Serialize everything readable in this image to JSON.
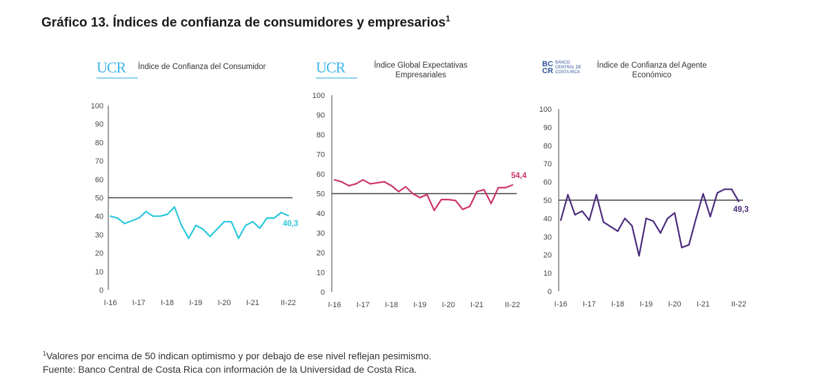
{
  "title": "Gráfico 13. Índices de confianza de consumidores y empresarios",
  "title_sup": "1",
  "logos": {
    "ucr": "UCR",
    "bccr_mark": [
      "BC",
      "CR"
    ],
    "bccr_text": [
      "BANCO",
      "CENTRAL DE",
      "COSTA RICA"
    ]
  },
  "footnotes": {
    "note_sup": "1",
    "note": "Valores por encima de 50 indican optimismo y por debajo de ese nivel reflejan pesimismo.",
    "source": "Fuente: Banco Central de Costa Rica con información de la Universidad de Costa Rica."
  },
  "chart_data": [
    {
      "type": "line",
      "title": "Índice de Confianza del Consumidor",
      "source_logo": "UCR",
      "color": "#29c8dc",
      "xlabel": "",
      "ylabel": "",
      "ylim": [
        0,
        100
      ],
      "yticks": [
        0,
        10,
        20,
        30,
        40,
        50,
        60,
        70,
        80,
        90,
        100
      ],
      "xtick_labels": [
        "I-16",
        "I-17",
        "I-18",
        "I-19",
        "I-20",
        "I-21",
        "II-22"
      ],
      "xtick_positions": [
        0,
        4,
        8,
        12,
        16,
        20,
        25
      ],
      "reference_line": 50,
      "last_value_label": "40,3",
      "values": [
        40,
        39,
        36,
        37.5,
        39,
        42.5,
        40,
        40,
        41,
        45,
        35,
        28,
        35,
        33,
        29,
        33,
        37,
        37,
        28,
        35,
        37,
        33.5,
        39,
        39,
        42,
        40.3
      ]
    },
    {
      "type": "line",
      "title": "Índice Global Expectativas Empresariales",
      "source_logo": "UCR",
      "color": "#cc3366",
      "xlabel": "",
      "ylabel": "",
      "ylim": [
        0,
        100
      ],
      "yticks": [
        0,
        10,
        20,
        30,
        40,
        50,
        60,
        70,
        80,
        90,
        100
      ],
      "xtick_labels": [
        "I-16",
        "I-17",
        "I-18",
        "I-19",
        "I-20",
        "I-21",
        "II-22"
      ],
      "xtick_positions": [
        0,
        4,
        8,
        12,
        16,
        20,
        25
      ],
      "reference_line": 50,
      "last_value_label": "54,4",
      "values": [
        57,
        56,
        54,
        55,
        57,
        55,
        55.5,
        56,
        54,
        51,
        53.5,
        50,
        48,
        49.5,
        41.5,
        47,
        47,
        46.5,
        42,
        43.5,
        51,
        52,
        45,
        53,
        53,
        54.4
      ]
    },
    {
      "type": "line",
      "title": "Índice de Confianza del Agente Económico",
      "source_logo": "BCCR",
      "color": "#4b2a7b",
      "xlabel": "",
      "ylabel": "",
      "ylim": [
        0,
        100
      ],
      "yticks": [
        0,
        10,
        20,
        30,
        40,
        50,
        60,
        70,
        80,
        90,
        100
      ],
      "xtick_labels": [
        "I-16",
        "I-17",
        "I-18",
        "I-19",
        "I-20",
        "I-21",
        "II-22"
      ],
      "xtick_positions": [
        0,
        4,
        8,
        12,
        16,
        20,
        25
      ],
      "reference_line": 50,
      "last_value_label": "49,3",
      "values": [
        39,
        53,
        42,
        44,
        39,
        53,
        38,
        35.5,
        33,
        40,
        36,
        19.5,
        40,
        38.5,
        32,
        40,
        43,
        24,
        25.5,
        40,
        53.5,
        41,
        54,
        56,
        56,
        49.3
      ]
    }
  ]
}
